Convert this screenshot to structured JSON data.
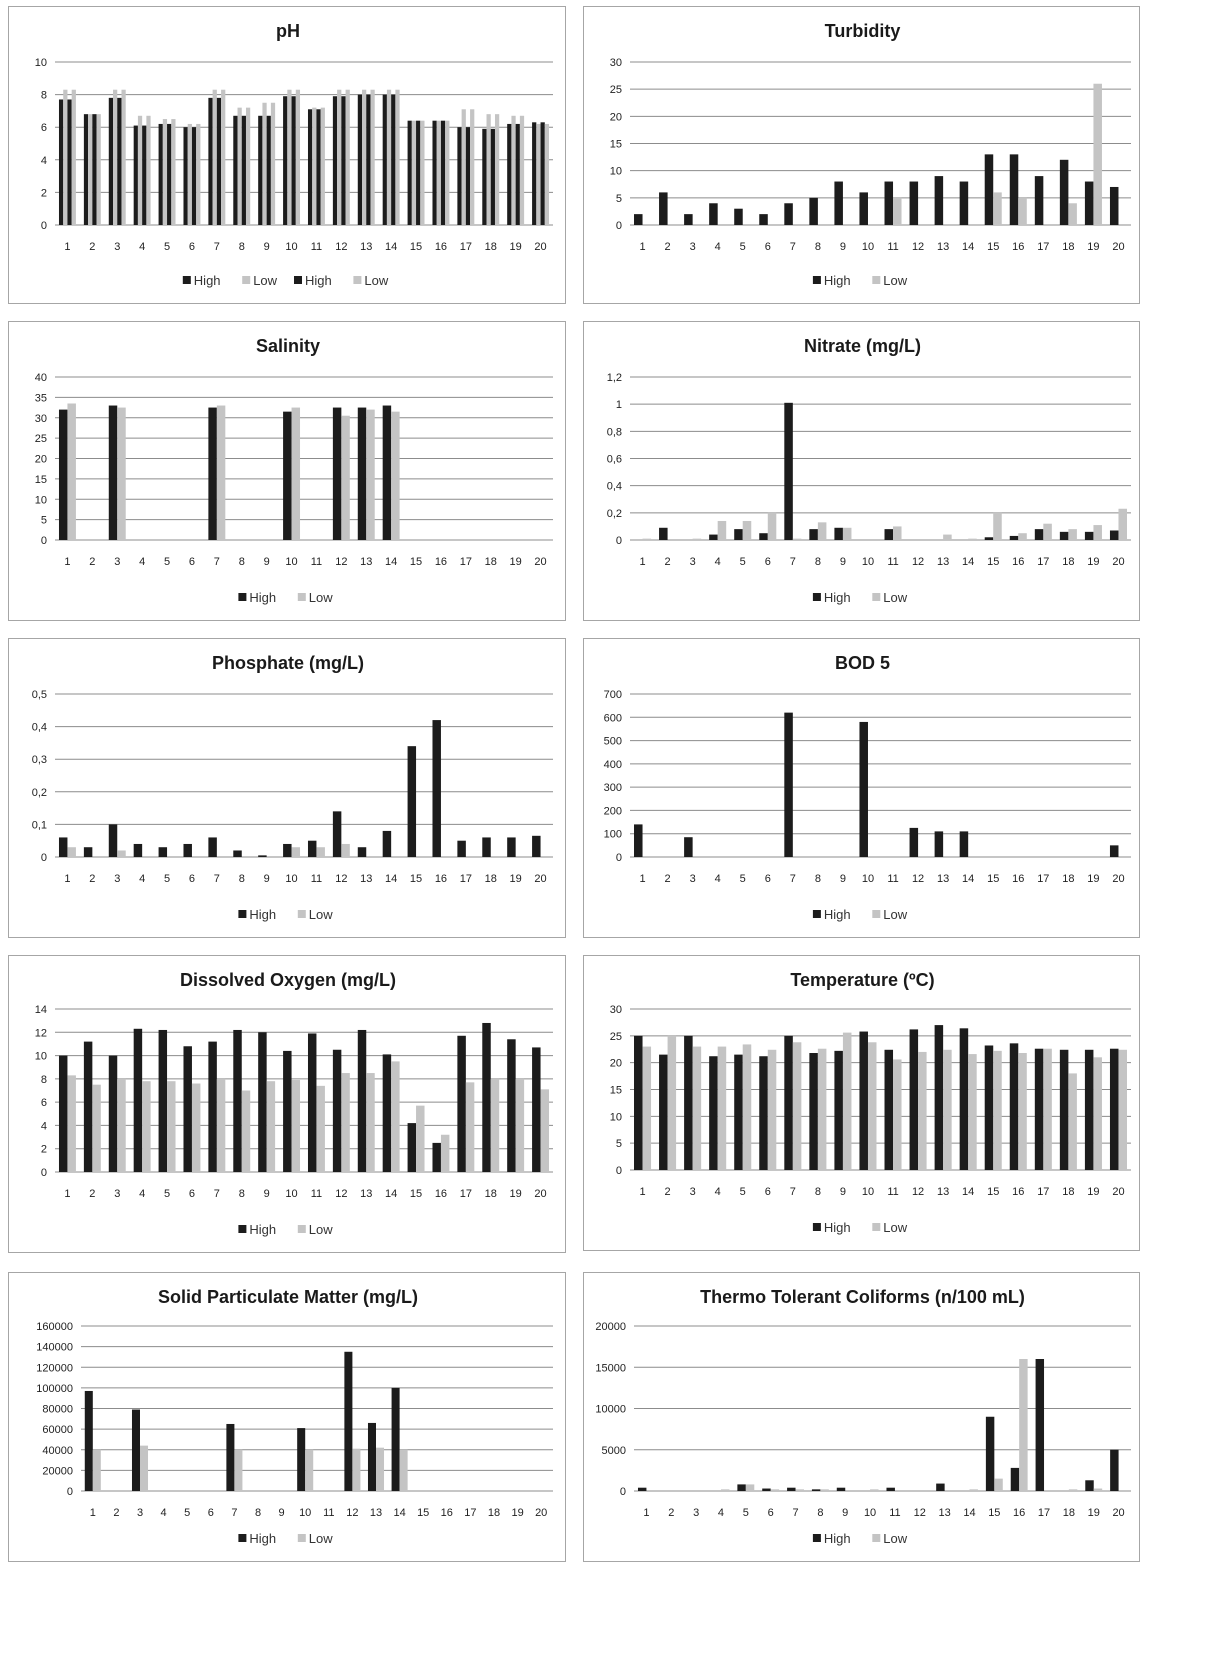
{
  "colors": {
    "high": "#1c1c1c",
    "low": "#c4c4c4",
    "grid": "#8c8c8c"
  },
  "chart_data": [
    {
      "type": "bar",
      "title": "pH",
      "categories": [
        "1",
        "2",
        "3",
        "4",
        "5",
        "6",
        "7",
        "8",
        "9",
        "10",
        "11",
        "12",
        "13",
        "14",
        "15",
        "16",
        "17",
        "18",
        "19",
        "20"
      ],
      "series": [
        {
          "name": "High",
          "values": [
            7.7,
            6.8,
            7.8,
            6.1,
            6.2,
            6.0,
            7.8,
            6.7,
            6.7,
            7.9,
            7.1,
            7.9,
            8.0,
            8.0,
            6.4,
            6.4,
            6.0,
            5.9,
            6.2,
            6.3
          ]
        },
        {
          "name": "Low",
          "values": [
            8.3,
            6.8,
            8.3,
            6.7,
            6.5,
            6.2,
            8.3,
            7.2,
            7.5,
            8.3,
            7.2,
            8.3,
            8.3,
            8.3,
            6.4,
            6.4,
            7.1,
            6.8,
            6.7,
            6.2
          ]
        },
        {
          "name": "High",
          "values": [
            7.7,
            6.8,
            7.8,
            6.1,
            6.2,
            6.0,
            7.8,
            6.7,
            6.7,
            7.9,
            7.1,
            7.9,
            8.0,
            8.0,
            6.4,
            6.4,
            6.0,
            5.9,
            6.2,
            6.3
          ]
        },
        {
          "name": "Low",
          "values": [
            8.3,
            6.8,
            8.3,
            6.7,
            6.5,
            6.2,
            8.3,
            7.2,
            7.5,
            8.3,
            7.2,
            8.3,
            8.3,
            8.3,
            6.4,
            6.4,
            7.1,
            6.8,
            6.7,
            6.2
          ]
        }
      ],
      "yticks": [
        "0",
        "2",
        "4",
        "6",
        "8",
        "10"
      ],
      "ylim": [
        0,
        10
      ],
      "legend": "bottom"
    },
    {
      "type": "bar",
      "title": "Turbidity",
      "categories": [
        "1",
        "2",
        "3",
        "4",
        "5",
        "6",
        "7",
        "8",
        "9",
        "10",
        "11",
        "12",
        "13",
        "14",
        "15",
        "16",
        "17",
        "18",
        "19",
        "20"
      ],
      "series": [
        {
          "name": "High",
          "values": [
            2,
            6,
            2,
            4,
            3,
            2,
            4,
            5,
            8,
            6,
            8,
            8,
            9,
            8,
            13,
            13,
            9,
            12,
            8,
            7
          ]
        },
        {
          "name": "Low",
          "values": [
            0,
            0,
            0,
            0,
            0,
            0,
            0,
            0,
            0,
            0,
            5,
            0,
            0,
            0,
            6,
            5,
            0,
            4,
            26,
            0
          ]
        }
      ],
      "yticks": [
        "0",
        "5",
        "10",
        "15",
        "20",
        "25",
        "30"
      ],
      "ylim": [
        0,
        30
      ],
      "legend": "bottom"
    },
    {
      "type": "bar",
      "title": "Salinity",
      "categories": [
        "1",
        "2",
        "3",
        "4",
        "5",
        "6",
        "7",
        "8",
        "9",
        "10",
        "11",
        "12",
        "13",
        "14",
        "15",
        "16",
        "17",
        "18",
        "19",
        "20"
      ],
      "series": [
        {
          "name": "High",
          "values": [
            32,
            0,
            33,
            0,
            0,
            0,
            32.5,
            0,
            0,
            31.5,
            0,
            32.5,
            32.5,
            33,
            0,
            0,
            0,
            0,
            0,
            0
          ]
        },
        {
          "name": "Low",
          "values": [
            33.5,
            0,
            32.5,
            0,
            0,
            0,
            33,
            0,
            0,
            32.5,
            0,
            30.5,
            32,
            31.5,
            0,
            0,
            0,
            0,
            0,
            0
          ]
        }
      ],
      "yticks": [
        "0",
        "5",
        "10",
        "15",
        "20",
        "25",
        "30",
        "35",
        "40"
      ],
      "ylim": [
        0,
        40
      ],
      "legend": "bottom"
    },
    {
      "type": "bar",
      "title": "Nitrate (mg/L)",
      "categories": [
        "1",
        "2",
        "3",
        "4",
        "5",
        "6",
        "7",
        "8",
        "9",
        "10",
        "11",
        "12",
        "13",
        "14",
        "15",
        "16",
        "17",
        "18",
        "19",
        "20"
      ],
      "series": [
        {
          "name": "High",
          "values": [
            0,
            0.09,
            0,
            0.04,
            0.08,
            0.05,
            1.01,
            0.08,
            0.09,
            0,
            0.08,
            0,
            0,
            0,
            0.02,
            0.03,
            0.08,
            0.06,
            0.06,
            0.07
          ]
        },
        {
          "name": "Low",
          "values": [
            0.01,
            0,
            0.01,
            0.14,
            0.14,
            0.2,
            0.01,
            0.13,
            0.09,
            0,
            0.1,
            0,
            0.04,
            0.01,
            0.2,
            0.05,
            0.12,
            0.08,
            0.11,
            0.23
          ]
        }
      ],
      "yticks": [
        "0",
        "0,2",
        "0,4",
        "0,6",
        "0,8",
        "1",
        "1,2"
      ],
      "ylim": [
        0,
        1.2
      ],
      "legend": "bottom"
    },
    {
      "type": "bar",
      "title": "Phosphate (mg/L)",
      "categories": [
        "1",
        "2",
        "3",
        "4",
        "5",
        "6",
        "7",
        "8",
        "9",
        "10",
        "11",
        "12",
        "13",
        "14",
        "15",
        "16",
        "17",
        "18",
        "19",
        "20"
      ],
      "series": [
        {
          "name": "High",
          "values": [
            0.06,
            0.03,
            0.1,
            0.04,
            0.03,
            0.04,
            0.06,
            0.02,
            0.005,
            0.04,
            0.05,
            0.14,
            0.03,
            0.08,
            0.34,
            0.42,
            0.05,
            0.06,
            0.06,
            0.065
          ]
        },
        {
          "name": "Low",
          "values": [
            0.03,
            0,
            0.02,
            0,
            0,
            0,
            0,
            0,
            0,
            0.03,
            0.03,
            0.04,
            0,
            0,
            0,
            0,
            0,
            0,
            0,
            0
          ]
        }
      ],
      "yticks": [
        "0",
        "0,1",
        "0,2",
        "0,3",
        "0,4",
        "0,5"
      ],
      "ylim": [
        0,
        0.5
      ],
      "legend": "bottom"
    },
    {
      "type": "bar",
      "title": "BOD 5",
      "categories": [
        "1",
        "2",
        "3",
        "4",
        "5",
        "6",
        "7",
        "8",
        "9",
        "10",
        "11",
        "12",
        "13",
        "14",
        "15",
        "16",
        "17",
        "18",
        "19",
        "20"
      ],
      "series": [
        {
          "name": "High",
          "values": [
            140,
            0,
            85,
            0,
            0,
            0,
            620,
            0,
            0,
            580,
            0,
            125,
            110,
            110,
            0,
            0,
            0,
            0,
            0,
            50
          ]
        },
        {
          "name": "Low",
          "values": [
            0,
            0,
            0,
            0,
            0,
            0,
            0,
            0,
            0,
            0,
            0,
            0,
            0,
            0,
            0,
            0,
            0,
            0,
            0,
            0
          ]
        }
      ],
      "yticks": [
        "0",
        "100",
        "200",
        "300",
        "400",
        "500",
        "600",
        "700"
      ],
      "ylim": [
        0,
        700
      ],
      "legend": "bottom"
    },
    {
      "type": "bar",
      "title": "Dissolved Oxygen (mg/L)",
      "categories": [
        "1",
        "2",
        "3",
        "4",
        "5",
        "6",
        "7",
        "8",
        "9",
        "10",
        "11",
        "12",
        "13",
        "14",
        "15",
        "16",
        "17",
        "18",
        "19",
        "20"
      ],
      "series": [
        {
          "name": "High",
          "values": [
            10,
            11.2,
            10,
            12.3,
            12.2,
            10.8,
            11.2,
            12.2,
            12,
            10.4,
            11.9,
            10.5,
            12.2,
            10.1,
            4.2,
            2.5,
            11.7,
            12.8,
            11.4,
            10.7
          ]
        },
        {
          "name": "Low",
          "values": [
            8.3,
            7.5,
            8,
            7.8,
            7.8,
            7.6,
            8,
            7,
            7.8,
            7.9,
            7.4,
            8.5,
            8.5,
            9.5,
            5.7,
            3.2,
            7.7,
            8,
            8,
            7.1
          ]
        }
      ],
      "yticks": [
        "0",
        "2",
        "4",
        "6",
        "8",
        "10",
        "12",
        "14"
      ],
      "ylim": [
        0,
        14
      ],
      "legend": "bottom"
    },
    {
      "type": "bar",
      "title": "Temperature (ºC)",
      "categories": [
        "1",
        "2",
        "3",
        "4",
        "5",
        "6",
        "7",
        "8",
        "9",
        "10",
        "11",
        "12",
        "13",
        "14",
        "15",
        "16",
        "17",
        "18",
        "19",
        "20"
      ],
      "series": [
        {
          "name": "High",
          "values": [
            25,
            21.5,
            25,
            21.2,
            21.5,
            21.2,
            25,
            21.8,
            22.2,
            25.8,
            22.4,
            26.2,
            27,
            26.4,
            23.2,
            23.6,
            22.6,
            22.4,
            22.4,
            22.6
          ]
        },
        {
          "name": "Low",
          "values": [
            23,
            25,
            23,
            23,
            23.4,
            22.4,
            23.8,
            22.6,
            25.6,
            23.8,
            20.6,
            22,
            22.4,
            21.6,
            22.2,
            21.8,
            22.6,
            18,
            21,
            22.4
          ]
        }
      ],
      "yticks": [
        "0",
        "5",
        "10",
        "15",
        "20",
        "25",
        "30"
      ],
      "ylim": [
        0,
        30
      ],
      "legend": "bottom"
    },
    {
      "type": "bar",
      "title": "Solid Particulate Matter (mg/L)",
      "categories": [
        "1",
        "2",
        "3",
        "4",
        "5",
        "6",
        "7",
        "8",
        "9",
        "10",
        "11",
        "12",
        "13",
        "14",
        "15",
        "16",
        "17",
        "18",
        "19",
        "20"
      ],
      "series": [
        {
          "name": "High",
          "values": [
            97000,
            0,
            79000,
            0,
            0,
            0,
            65000,
            0,
            0,
            61000,
            0,
            135000,
            66000,
            100000,
            0,
            0,
            0,
            0,
            0,
            0
          ]
        },
        {
          "name": "Low",
          "values": [
            40000,
            0,
            44000,
            0,
            0,
            0,
            40000,
            0,
            0,
            40000,
            0,
            41000,
            42000,
            40000,
            0,
            0,
            0,
            0,
            0,
            0
          ]
        }
      ],
      "yticks": [
        "0",
        "20000",
        "40000",
        "60000",
        "80000",
        "100000",
        "120000",
        "140000",
        "160000"
      ],
      "ylim": [
        0,
        160000
      ],
      "legend": "bottom"
    },
    {
      "type": "bar",
      "title": "Thermo Tolerant Coliforms (n/100 mL)",
      "categories": [
        "1",
        "2",
        "3",
        "4",
        "5",
        "6",
        "7",
        "8",
        "9",
        "10",
        "11",
        "12",
        "13",
        "14",
        "15",
        "16",
        "17",
        "18",
        "19",
        "20"
      ],
      "series": [
        {
          "name": "High",
          "values": [
            400,
            0,
            0,
            0,
            800,
            300,
            400,
            200,
            400,
            0,
            400,
            0,
            900,
            0,
            9000,
            2800,
            16000,
            0,
            1300,
            5000
          ]
        },
        {
          "name": "Low",
          "values": [
            0,
            0,
            0,
            200,
            800,
            200,
            200,
            200,
            0,
            200,
            0,
            0,
            0,
            200,
            1500,
            16000,
            0,
            200,
            300,
            0
          ]
        }
      ],
      "yticks": [
        "0",
        "5000",
        "10000",
        "15000",
        "20000"
      ],
      "ylim": [
        0,
        20000
      ],
      "legend": "bottom"
    }
  ]
}
